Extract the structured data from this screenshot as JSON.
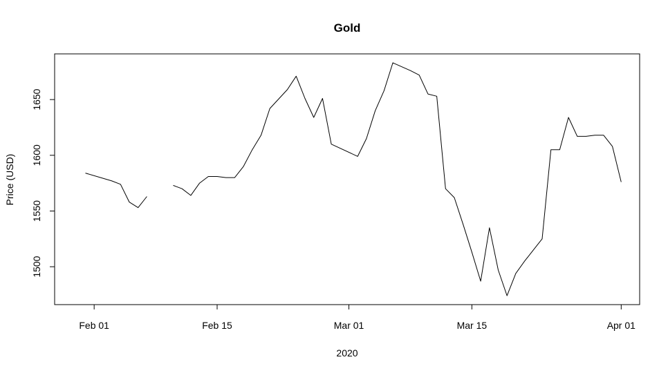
{
  "chart_data": {
    "type": "line",
    "title": "Gold",
    "xlabel": "2020",
    "ylabel": "Price (USD)",
    "x_ticks": [
      {
        "day": 31,
        "label": "Feb 01"
      },
      {
        "day": 45,
        "label": "Feb 15"
      },
      {
        "day": 60,
        "label": "Mar 01"
      },
      {
        "day": 74,
        "label": "Mar 15"
      },
      {
        "day": 91,
        "label": "Apr 01"
      }
    ],
    "y_ticks": [
      1500,
      1550,
      1600,
      1650
    ],
    "xlim": [
      26.5,
      93.1
    ],
    "ylim": [
      1466,
      1691
    ],
    "series": [
      {
        "name": "Gold",
        "segments": [
          [
            [
              30,
              1584
            ],
            [
              33,
              1577
            ],
            [
              34,
              1574
            ],
            [
              35,
              1558
            ],
            [
              36,
              1553
            ],
            [
              37,
              1563
            ]
          ],
          [
            [
              40,
              1573
            ],
            [
              41,
              1570
            ],
            [
              42,
              1564
            ],
            [
              43,
              1575
            ],
            [
              44,
              1581
            ],
            [
              45,
              1581
            ],
            [
              46,
              1580
            ],
            [
              47,
              1580
            ],
            [
              48,
              1590
            ],
            [
              49,
              1605
            ],
            [
              50,
              1618
            ],
            [
              51,
              1642
            ],
            [
              53,
              1659
            ],
            [
              54,
              1671
            ],
            [
              55,
              1651
            ],
            [
              56,
              1634
            ],
            [
              57,
              1651
            ],
            [
              58,
              1610
            ],
            [
              61,
              1599
            ],
            [
              62,
              1615
            ],
            [
              63,
              1640
            ],
            [
              64,
              1658
            ],
            [
              65,
              1683
            ],
            [
              67,
              1676
            ],
            [
              68,
              1672
            ],
            [
              69,
              1655
            ],
            [
              70,
              1653
            ],
            [
              71,
              1570
            ],
            [
              72,
              1562
            ],
            [
              73,
              1538
            ],
            [
              74,
              1513
            ],
            [
              75,
              1487
            ],
            [
              76,
              1535
            ],
            [
              77,
              1497
            ],
            [
              78,
              1474
            ],
            [
              79,
              1494
            ],
            [
              80,
              1505
            ],
            [
              81,
              1515
            ],
            [
              82,
              1525
            ],
            [
              83,
              1605
            ],
            [
              84,
              1605
            ],
            [
              85,
              1634
            ],
            [
              86,
              1617
            ],
            [
              87,
              1617
            ],
            [
              88,
              1618
            ],
            [
              89,
              1618
            ],
            [
              90,
              1608
            ],
            [
              91,
              1576
            ]
          ]
        ]
      }
    ]
  }
}
